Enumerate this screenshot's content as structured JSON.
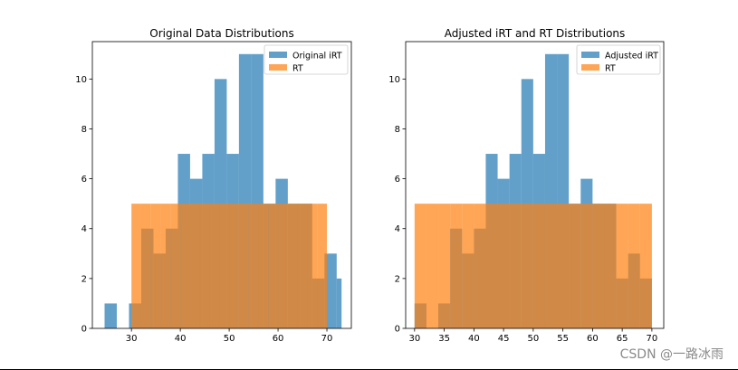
{
  "chart_data": [
    {
      "type": "histogram",
      "title": "Original Data Distributions",
      "xlim": [
        22,
        75
      ],
      "ylim": [
        0,
        11.5
      ],
      "xticks": [
        30,
        40,
        50,
        60,
        70
      ],
      "yticks": [
        0,
        2,
        4,
        6,
        8,
        10
      ],
      "grid": false,
      "legend_position": "top-right",
      "series": [
        {
          "name": "Original iRT",
          "color": "#1f77b4",
          "bin_edges": [
            24.5,
            27.0,
            29.5,
            32.0,
            34.5,
            37.0,
            39.5,
            42.0,
            44.5,
            47.0,
            49.5,
            52.0,
            54.5,
            57.0,
            59.5,
            62.0,
            64.5,
            67.0,
            69.5,
            72.0,
            73.0
          ],
          "counts": [
            1,
            0,
            1,
            4,
            3,
            4,
            7,
            6,
            7,
            10,
            7,
            11,
            11,
            5,
            6,
            5,
            5,
            2,
            3,
            2
          ]
        },
        {
          "name": "RT",
          "color": "#ff7f0e",
          "bin_edges": [
            30.0,
            32.0,
            34.0,
            36.0,
            38.0,
            40.0,
            42.0,
            44.0,
            46.0,
            48.0,
            50.0,
            52.0,
            54.0,
            56.0,
            58.0,
            60.0,
            62.0,
            64.0,
            66.0,
            68.0,
            70.0
          ],
          "counts": [
            5,
            5,
            5,
            5,
            5,
            5,
            5,
            5,
            5,
            5,
            5,
            5,
            5,
            5,
            5,
            5,
            5,
            5,
            5,
            5
          ]
        }
      ]
    },
    {
      "type": "histogram",
      "title": "Adjusted iRT and RT Distributions",
      "xlim": [
        28.5,
        72
      ],
      "ylim": [
        0,
        11.5
      ],
      "xticks": [
        30,
        35,
        40,
        45,
        50,
        55,
        60,
        65,
        70
      ],
      "yticks": [
        0,
        2,
        4,
        6,
        8,
        10
      ],
      "grid": false,
      "legend_position": "top-right",
      "series": [
        {
          "name": "Adjusted iRT",
          "color": "#1f77b4",
          "bin_edges": [
            30.0,
            32.0,
            34.0,
            36.0,
            38.0,
            40.0,
            42.0,
            44.0,
            46.0,
            48.0,
            50.0,
            52.0,
            54.0,
            56.0,
            58.0,
            60.0,
            62.0,
            64.0,
            66.0,
            68.0,
            70.0
          ],
          "counts": [
            1,
            0,
            1,
            4,
            3,
            4,
            7,
            6,
            7,
            10,
            7,
            11,
            11,
            5,
            6,
            5,
            5,
            2,
            3,
            2
          ]
        },
        {
          "name": "RT",
          "color": "#ff7f0e",
          "bin_edges": [
            30.0,
            32.0,
            34.0,
            36.0,
            38.0,
            40.0,
            42.0,
            44.0,
            46.0,
            48.0,
            50.0,
            52.0,
            54.0,
            56.0,
            58.0,
            60.0,
            62.0,
            64.0,
            66.0,
            68.0,
            70.0
          ],
          "counts": [
            5,
            5,
            5,
            5,
            5,
            5,
            5,
            5,
            5,
            5,
            5,
            5,
            5,
            5,
            5,
            5,
            5,
            5,
            5,
            5
          ]
        }
      ]
    }
  ],
  "watermark": "CSDN @一路冰雨"
}
